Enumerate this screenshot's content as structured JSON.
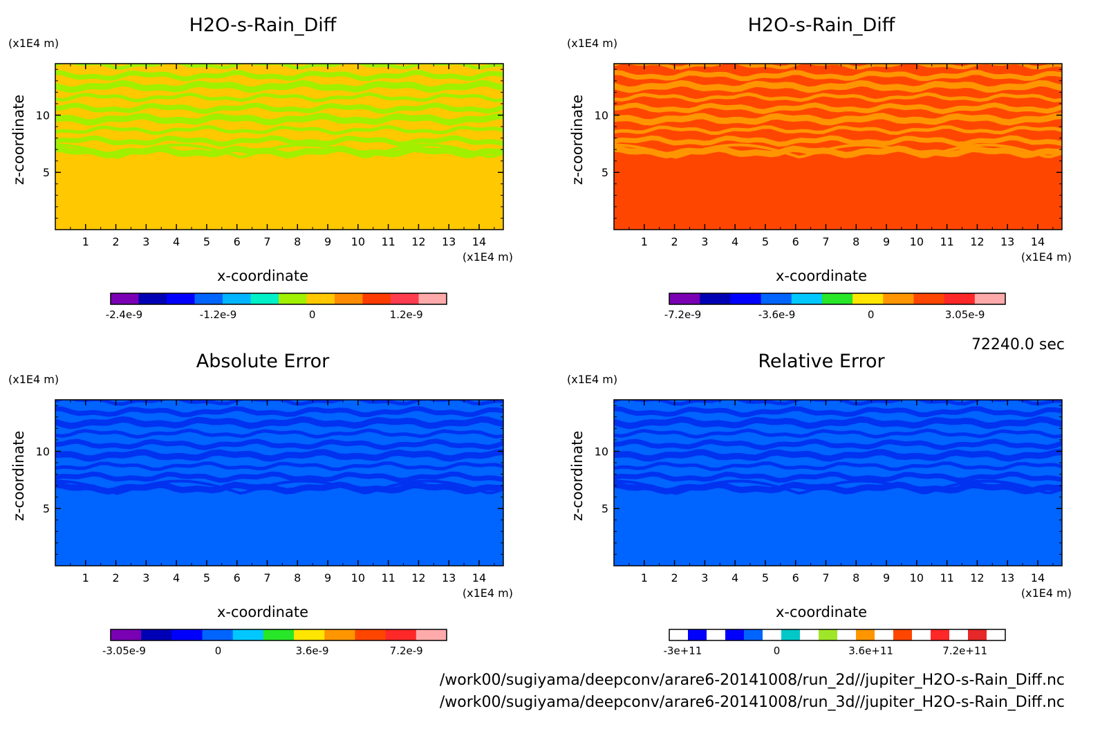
{
  "time_label": "72240.0 sec",
  "file_paths": [
    "/work00/sugiyama/deepconv/arare6-20141008/run_2d//jupiter_H2O-s-Rain_Diff.nc",
    "/work00/sugiyama/deepconv/arare6-20141008/run_3d//jupiter_H2O-s-Rain_Diff.nc"
  ],
  "chart_data": [
    {
      "type": "heatmap",
      "title": "H2O-s-Rain_Diff",
      "xlabel": "x-coordinate",
      "ylabel": "z-coordinate",
      "x_unit": "(x1E4 m)",
      "y_unit": "(x1E4 m)",
      "xlim": [
        0,
        14.8
      ],
      "ylim": [
        0,
        14.5
      ],
      "x_ticks": [
        "1",
        "2",
        "3",
        "4",
        "5",
        "6",
        "7",
        "8",
        "9",
        "10",
        "11",
        "12",
        "13",
        "14"
      ],
      "y_ticks": [
        "5",
        "10"
      ],
      "background_color": "#FFC800",
      "band_color": "#A0F000",
      "colorbar": {
        "colors": [
          "#7A00B4",
          "#0000B4",
          "#0000FF",
          "#0064FF",
          "#00B4FF",
          "#00F0C8",
          "#A0F000",
          "#FFC800",
          "#FF8C00",
          "#FF3C00",
          "#FF3C50",
          "#FFAAAA"
        ],
        "labels": [
          "-2.4e-9",
          "-1.2e-9",
          "0",
          "1.2e-9"
        ]
      }
    },
    {
      "type": "heatmap",
      "title": "H2O-s-Rain_Diff",
      "xlabel": "x-coordinate",
      "ylabel": "z-coordinate",
      "x_unit": "(x1E4 m)",
      "y_unit": "(x1E4 m)",
      "xlim": [
        0,
        14.8
      ],
      "ylim": [
        0,
        14.5
      ],
      "x_ticks": [
        "1",
        "2",
        "3",
        "4",
        "5",
        "6",
        "7",
        "8",
        "9",
        "10",
        "11",
        "12",
        "13",
        "14"
      ],
      "y_ticks": [
        "5",
        "10"
      ],
      "background_color": "#FF4600",
      "band_color": "#FF9600",
      "colorbar": {
        "colors": [
          "#7A00B4",
          "#0000B4",
          "#0000FF",
          "#0064FF",
          "#00C8FF",
          "#28E628",
          "#FFE600",
          "#FF9600",
          "#FF4600",
          "#FF2828",
          "#FFAAAA"
        ],
        "labels": [
          "-7.2e-9",
          "-3.6e-9",
          "0",
          "3.05e-9"
        ]
      }
    },
    {
      "type": "heatmap",
      "title": "Absolute Error",
      "xlabel": "x-coordinate",
      "ylabel": "z-coordinate",
      "x_unit": "(x1E4 m)",
      "y_unit": "(x1E4 m)",
      "xlim": [
        0,
        14.8
      ],
      "ylim": [
        0,
        14.5
      ],
      "x_ticks": [
        "1",
        "2",
        "3",
        "4",
        "5",
        "6",
        "7",
        "8",
        "9",
        "10",
        "11",
        "12",
        "13",
        "14"
      ],
      "y_ticks": [
        "5",
        "10"
      ],
      "background_color": "#0064FF",
      "band_color": "#0032F0",
      "colorbar": {
        "colors": [
          "#7A00B4",
          "#0000B4",
          "#0000FF",
          "#0064FF",
          "#00C8FF",
          "#28E628",
          "#FFE600",
          "#FF9600",
          "#FF4600",
          "#FF2828",
          "#FFAAAA"
        ],
        "labels": [
          "-3.05e-9",
          "0",
          "3.6e-9",
          "7.2e-9"
        ]
      }
    },
    {
      "type": "heatmap",
      "title": "Relative Error",
      "xlabel": "x-coordinate",
      "ylabel": "z-coordinate",
      "x_unit": "(x1E4 m)",
      "y_unit": "(x1E4 m)",
      "xlim": [
        0,
        14.8
      ],
      "ylim": [
        0,
        14.5
      ],
      "x_ticks": [
        "1",
        "2",
        "3",
        "4",
        "5",
        "6",
        "7",
        "8",
        "9",
        "10",
        "11",
        "12",
        "13",
        "14"
      ],
      "y_ticks": [
        "5",
        "10"
      ],
      "background_color": "#0064FF",
      "band_color": "#0032F0",
      "colorbar": {
        "colors": [
          "#FFFFFF",
          "#0000FF",
          "#FFFFFF",
          "#0000FF",
          "#0064FF",
          "#FFFFFF",
          "#00C8C8",
          "#FFFFFF",
          "#A0E628",
          "#FFFFFF",
          "#FF9600",
          "#FFFFFF",
          "#FF4600",
          "#FFFFFF",
          "#FF2828",
          "#FFFFFF",
          "#E62828",
          "#FFFFFF"
        ],
        "labels": [
          "-3e+11",
          "0",
          "3.6e+11",
          "7.2e+11"
        ]
      }
    }
  ]
}
